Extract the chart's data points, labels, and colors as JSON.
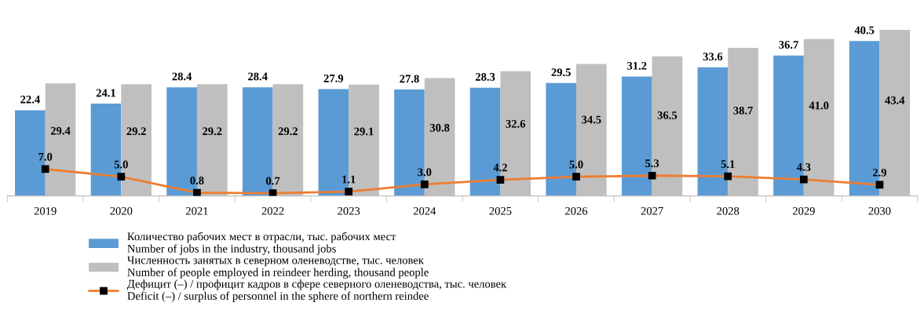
{
  "chart_data": {
    "type": "bar",
    "categories": [
      "2019",
      "2020",
      "2021",
      "2022",
      "2023",
      "2024",
      "2025",
      "2026",
      "2027",
      "2028",
      "2029",
      "2030"
    ],
    "series": [
      {
        "name": "Количество рабочих мест в отрасли, тыс. рабочих мест\nNumber of jobs in the industry, thousand jobs",
        "color": "#5b9bd5",
        "values": [
          22.4,
          24.1,
          28.4,
          28.4,
          27.9,
          27.8,
          28.3,
          29.5,
          31.2,
          33.6,
          36.7,
          40.5
        ],
        "value_labels": [
          "22.4",
          "24.1",
          "28.4",
          "28.4",
          "27.9",
          "27.8",
          "28.3",
          "29.5",
          "31.2",
          "33.6",
          "36.7",
          "40.5"
        ]
      },
      {
        "name": "Численность занятых в северном оленеводстве, тыс. человек\nNumber of people employed in reindeer herding, thousand people",
        "color": "#bfbfbf",
        "values": [
          29.4,
          29.2,
          29.2,
          29.2,
          29.1,
          30.8,
          32.6,
          34.5,
          36.5,
          38.7,
          41.0,
          43.4
        ],
        "value_labels": [
          "29.4",
          "29.2",
          "29.2",
          "29.2",
          "29.1",
          "30.8",
          "32.6",
          "34.5",
          "36.5",
          "38.7",
          "41.0",
          "43.4"
        ]
      },
      {
        "name": "Дефицит (–) / профицит кадров в сфере северного оленеводства, тыс. человек\nDeficit (–) / surplus of personnel in the sphere of northern reindee",
        "type": "line",
        "color": "#ed7d31",
        "values": [
          7.0,
          5.0,
          0.8,
          0.7,
          1.1,
          3.0,
          4.2,
          5.0,
          5.3,
          5.1,
          4.3,
          2.9
        ],
        "value_labels": [
          "7.0",
          "5.0",
          "0.8",
          "0.7",
          "1.1",
          "3.0",
          "4.2",
          "5.0",
          "5.3",
          "5.1",
          "4.3",
          "2.9"
        ]
      }
    ],
    "marker": "square",
    "line_style": "solid",
    "legend": "bottom",
    "tick_labels": "x"
  }
}
